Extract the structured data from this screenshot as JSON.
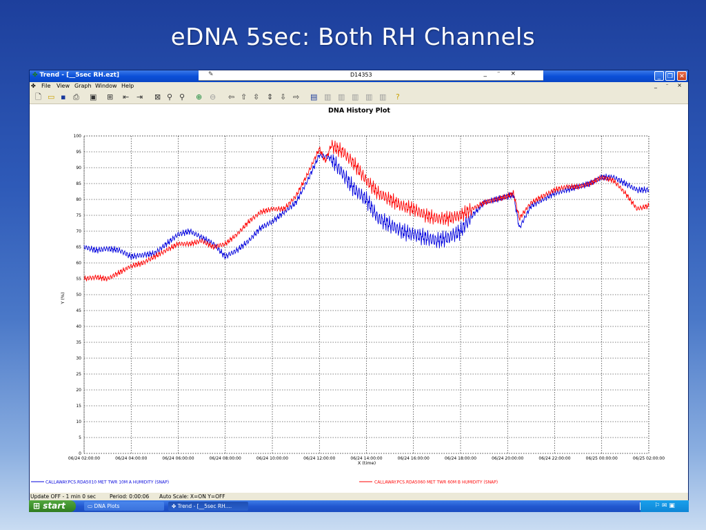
{
  "slide": {
    "title": "eDNA 5sec: Both RH Channels"
  },
  "window": {
    "title": "Trend  - [__5sec RH.ezt]",
    "doc_title": "D14353",
    "mdi_controls": "_ ⁻ ×",
    "inner_controls": "_ ⁻ ×"
  },
  "menu": {
    "items": [
      "File",
      "View",
      "Graph",
      "Window",
      "Help"
    ]
  },
  "toolbar": {
    "icons": [
      "new-icon",
      "open-icon",
      "save-icon",
      "print-icon",
      "preview-icon",
      "export-icon",
      "scroll-left-icon",
      "scroll-right-icon",
      "zoom-box-icon",
      "zoom-in-icon",
      "zoom-out-icon",
      "autoscale-on-icon",
      "autoscale-off-icon",
      "arrow-left-icon",
      "arrow-up-icon",
      "arrow-expand-v-icon",
      "arrow-compress-v-icon",
      "arrow-down-icon",
      "arrow-right-icon",
      "trend-tool-1-icon",
      "trend-tool-2-icon",
      "trend-tool-3-icon",
      "trend-tool-4-icon",
      "trend-tool-5-icon",
      "trend-tool-6-icon",
      "help-icon"
    ]
  },
  "status": {
    "update": "Update OFF - 1 min 0 sec",
    "period": "Period: 0:00:06",
    "autoscale": "Auto Scale: X=ON  Y=OFF"
  },
  "taskbar": {
    "start": "start",
    "task1": "DNA Plots",
    "task2": "Trend - [__5sec RH...."
  },
  "colors": {
    "series_a": "#0000dd",
    "series_b": "#ff0000",
    "grid": "#000000"
  },
  "chart_data": {
    "type": "line",
    "title": "DNA History Plot",
    "xlabel": "X (time)",
    "ylabel": "Y (%)",
    "ylim": [
      0,
      100
    ],
    "yticks": [
      0,
      5,
      10,
      15,
      20,
      25,
      30,
      35,
      40,
      45,
      50,
      55,
      60,
      65,
      70,
      75,
      80,
      85,
      90,
      95,
      100
    ],
    "xlim": [
      "06/24 02:00:00",
      "06/25 02:00:00"
    ],
    "xtick_labels": [
      "06/24 02:00:00",
      "06/24 04:00:00",
      "06/24 06:00:00",
      "06/24 08:00:00",
      "06/24 10:00:00",
      "06/24 12:00:00",
      "06/24 14:00:00",
      "06/24 16:00:00",
      "06/24 18:00:00",
      "06/24 20:00:00",
      "06/24 22:00:00",
      "06/25 00:00:00",
      "06/25 02:00:00"
    ],
    "grid": true,
    "legend_placement": "bottom",
    "series": [
      {
        "name": "CALLAWAY.PCS.RDA5010 MET TWR 10M A HUMIDITY (SNAP)",
        "x": [
          "06/24 02:00",
          "06/24 02:30",
          "06/24 03:00",
          "06/24 03:30",
          "06/24 04:00",
          "06/24 04:30",
          "06/24 05:00",
          "06/24 05:30",
          "06/24 06:00",
          "06/24 06:30",
          "06/24 07:00",
          "06/24 07:30",
          "06/24 08:00",
          "06/24 08:30",
          "06/24 09:00",
          "06/24 09:30",
          "06/24 10:00",
          "06/24 10:30",
          "06/24 11:00",
          "06/24 11:30",
          "06/24 12:00",
          "06/24 12:30",
          "06/24 13:00",
          "06/24 13:30",
          "06/24 14:00",
          "06/24 14:30",
          "06/24 15:00",
          "06/24 15:30",
          "06/24 16:00",
          "06/24 16:30",
          "06/24 17:00",
          "06/24 17:30",
          "06/24 18:00",
          "06/24 18:30",
          "06/24 19:00",
          "06/24 19:30",
          "06/24 20:00",
          "06/24 20:15",
          "06/24 20:30",
          "06/24 21:00",
          "06/24 21:30",
          "06/24 22:00",
          "06/24 22:30",
          "06/24 23:00",
          "06/24 23:30",
          "06/25 00:00",
          "06/25 00:30",
          "06/25 01:00",
          "06/25 01:30",
          "06/25 02:00"
        ],
        "values": [
          65,
          64,
          64.5,
          64,
          62,
          62.5,
          63,
          66,
          69,
          70,
          68,
          66,
          62,
          64,
          67,
          71,
          73,
          76,
          79,
          86,
          94,
          93,
          88,
          83,
          80,
          74,
          72,
          70,
          69,
          68,
          67,
          68,
          70,
          75,
          79,
          80,
          81,
          81.5,
          71,
          78,
          80,
          82,
          83,
          84,
          85,
          87,
          87,
          85,
          83,
          83
        ]
      },
      {
        "name": "CALLAWAY.PCS.RDA5060 MET TWR 60M B HUMIDITY (SNAP)",
        "x": [
          "06/24 02:00",
          "06/24 02:30",
          "06/24 03:00",
          "06/24 03:30",
          "06/24 04:00",
          "06/24 04:30",
          "06/24 05:00",
          "06/24 05:30",
          "06/24 06:00",
          "06/24 06:30",
          "06/24 07:00",
          "06/24 07:30",
          "06/24 08:00",
          "06/24 08:30",
          "06/24 09:00",
          "06/24 09:30",
          "06/24 10:00",
          "06/24 10:30",
          "06/24 11:00",
          "06/24 11:30",
          "06/24 12:00",
          "06/24 12:15",
          "06/24 12:30",
          "06/24 13:00",
          "06/24 13:30",
          "06/24 14:00",
          "06/24 14:30",
          "06/24 15:00",
          "06/24 15:30",
          "06/24 16:00",
          "06/24 16:30",
          "06/24 17:00",
          "06/24 17:30",
          "06/24 18:00",
          "06/24 18:30",
          "06/24 19:00",
          "06/24 19:30",
          "06/24 20:00",
          "06/24 20:15",
          "06/24 20:30",
          "06/24 21:00",
          "06/24 21:30",
          "06/24 22:00",
          "06/24 22:30",
          "06/24 23:00",
          "06/24 23:30",
          "06/25 00:00",
          "06/25 00:30",
          "06/25 01:00",
          "06/25 01:30",
          "06/25 02:00"
        ],
        "values": [
          55,
          55.5,
          55,
          57,
          59,
          60,
          62,
          64,
          66,
          66,
          67,
          65,
          66,
          69,
          73,
          76,
          77,
          77,
          81,
          88,
          96,
          92,
          97,
          95,
          91,
          86,
          82,
          80,
          78,
          77,
          75,
          74,
          74,
          75,
          77,
          79,
          80,
          81,
          82,
          74,
          79,
          81,
          83,
          84,
          84,
          85,
          87,
          86,
          82,
          77,
          78
        ]
      }
    ]
  }
}
